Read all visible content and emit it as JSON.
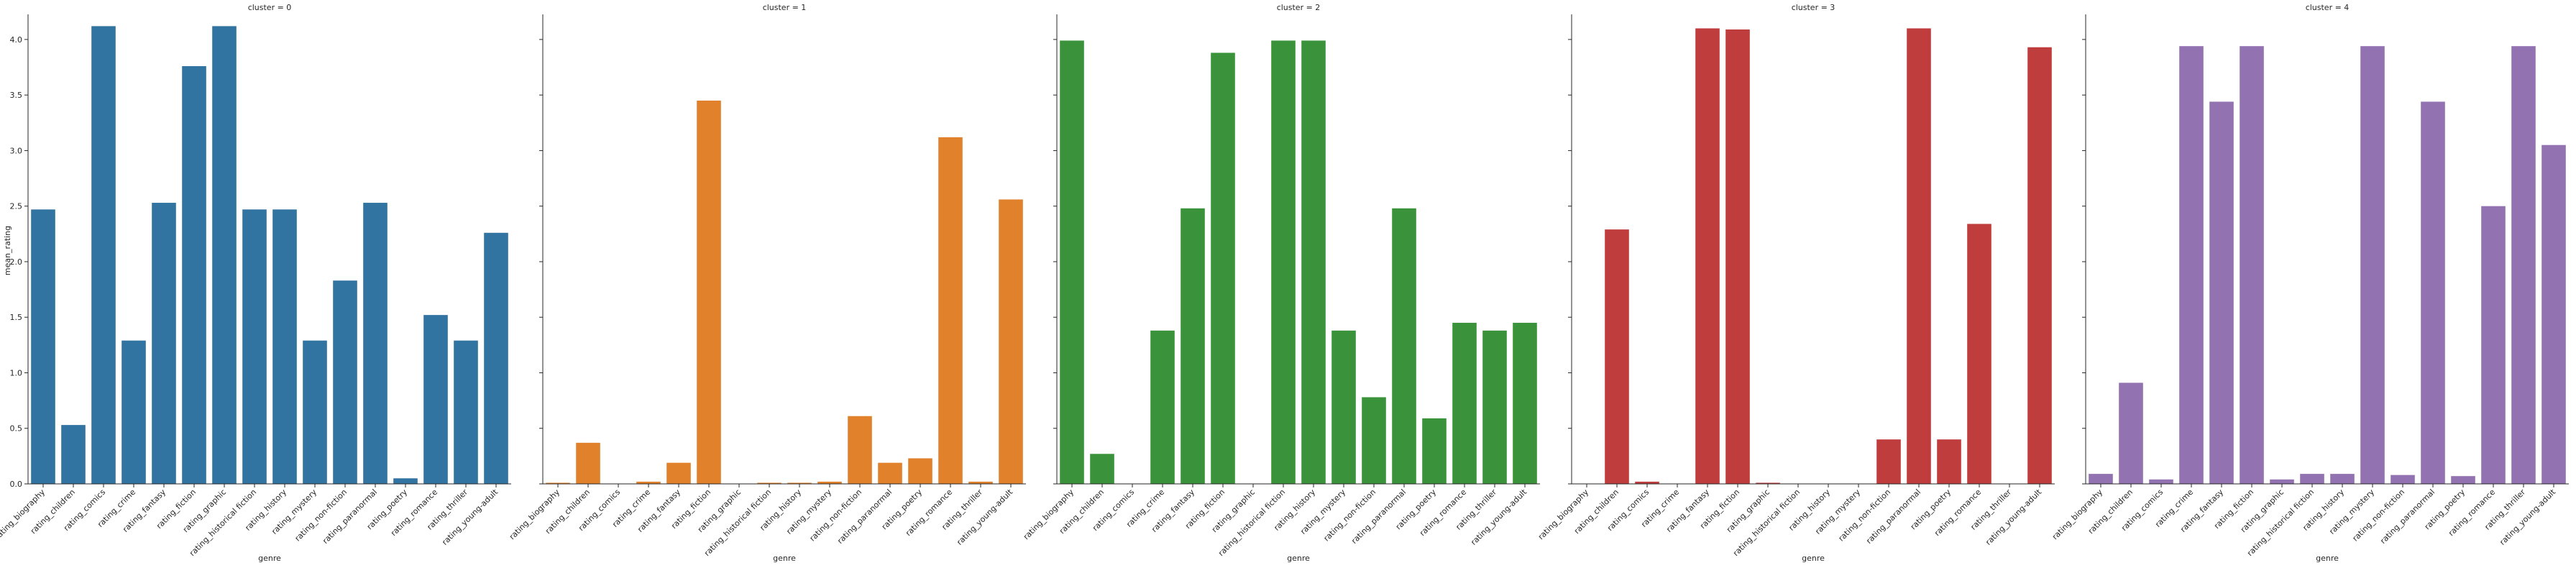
{
  "chart_data": {
    "type": "bar",
    "layout": "facet-columns",
    "facet_variable": "cluster",
    "xlabel": "genre",
    "ylabel": "mean_rating",
    "ylim": [
      0,
      4.2
    ],
    "yticks": [
      0.0,
      0.5,
      1.0,
      1.5,
      2.0,
      2.5,
      3.0,
      3.5,
      4.0
    ],
    "ytick_labels": [
      "0.0",
      "0.5",
      "1.0",
      "1.5",
      "2.0",
      "2.5",
      "3.0",
      "3.5",
      "4.0"
    ],
    "grid": false,
    "categories": [
      "rating_biography",
      "rating_children",
      "rating_comics",
      "rating_crime",
      "rating_fantasy",
      "rating_fiction",
      "rating_graphic",
      "rating_historical fiction",
      "rating_history",
      "rating_mystery",
      "rating_non-fiction",
      "rating_paranormal",
      "rating_poetry",
      "rating_romance",
      "rating_thriller",
      "rating_young-adult"
    ],
    "panels": [
      {
        "title": "cluster = 0",
        "color": "#3274a1",
        "values": [
          2.47,
          0.53,
          4.12,
          1.29,
          2.53,
          3.76,
          4.12,
          2.47,
          2.47,
          1.29,
          1.83,
          2.53,
          0.05,
          1.52,
          1.29,
          2.26
        ]
      },
      {
        "title": "cluster = 1",
        "color": "#e1812c",
        "values": [
          0.01,
          0.37,
          0.0,
          0.02,
          0.19,
          3.45,
          0.0,
          0.01,
          0.01,
          0.02,
          0.61,
          0.19,
          0.23,
          3.12,
          0.02,
          2.56
        ]
      },
      {
        "title": "cluster = 2",
        "color": "#3a923a",
        "values": [
          3.99,
          0.27,
          0.0,
          1.38,
          2.48,
          3.88,
          0.0,
          3.99,
          3.99,
          1.38,
          0.78,
          2.48,
          0.59,
          1.45,
          1.38,
          1.45
        ]
      },
      {
        "title": "cluster = 3",
        "color": "#c03d3e",
        "values": [
          0.0,
          2.29,
          0.02,
          0.0,
          4.1,
          4.09,
          0.01,
          0.0,
          0.0,
          0.0,
          0.4,
          4.1,
          0.4,
          2.34,
          0.0,
          3.93
        ]
      },
      {
        "title": "cluster = 4",
        "color": "#9372b2",
        "values": [
          0.09,
          0.91,
          0.04,
          3.94,
          3.44,
          3.94,
          0.04,
          0.09,
          0.09,
          3.94,
          0.08,
          3.44,
          0.07,
          2.5,
          3.94,
          3.05
        ]
      }
    ]
  }
}
